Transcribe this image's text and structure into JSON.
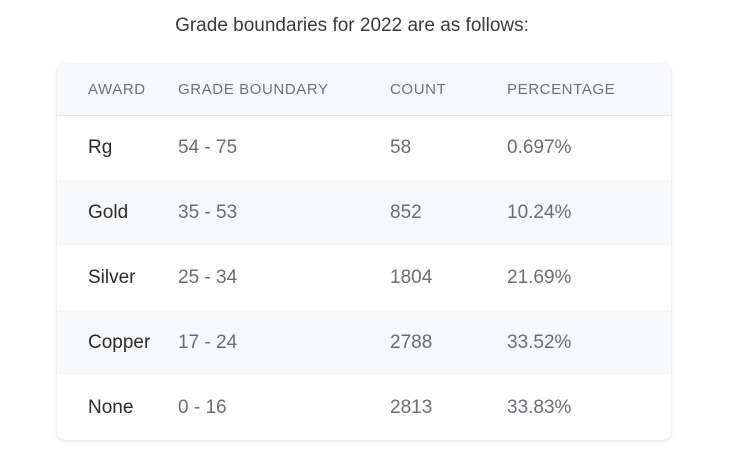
{
  "intro_text": "Grade boundaries for 2022 are as follows:",
  "table": {
    "headers": [
      "AWARD",
      "GRADE BOUNDARY",
      "COUNT",
      "PERCENTAGE"
    ],
    "rows": [
      {
        "award": "Rg",
        "boundary": "54 - 75",
        "count": "58",
        "percentage": "0.697%"
      },
      {
        "award": "Gold",
        "boundary": "35 - 53",
        "count": "852",
        "percentage": "10.24%"
      },
      {
        "award": "Silver",
        "boundary": "25 - 34",
        "count": "1804",
        "percentage": "21.69%"
      },
      {
        "award": "Copper",
        "boundary": "17 - 24",
        "count": "2788",
        "percentage": "33.52%"
      },
      {
        "award": "None",
        "boundary": "0 - 16",
        "count": "2813",
        "percentage": "33.83%"
      }
    ]
  },
  "colors": {
    "header_background": "#f7f8fa",
    "stripe_background": "#f7f8fa",
    "header_text": "#6d737a",
    "primary_text": "#2b2b2b",
    "secondary_text": "#6a6e73"
  }
}
